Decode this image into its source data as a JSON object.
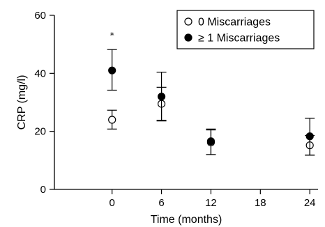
{
  "chart_data": {
    "type": "scatter",
    "xlabel": "Time (months)",
    "ylabel": "CRP (mg/l)",
    "xlim": [
      -7,
      25
    ],
    "ylim": [
      0,
      60
    ],
    "x_ticks": [
      0,
      6,
      12,
      18,
      24
    ],
    "y_ticks": [
      0,
      20,
      40,
      60
    ],
    "legend_position": "top-right",
    "series": [
      {
        "name": "0 Miscarriages",
        "marker": "open-circle",
        "color": "#000000",
        "points": [
          {
            "x": 0,
            "y": 24,
            "low": 20.8,
            "high": 27.3
          },
          {
            "x": 6,
            "y": 29.5,
            "low": 23.8,
            "high": 35.2
          },
          {
            "x": 12,
            "y": 16.2,
            "low": 12,
            "high": 20.5
          },
          {
            "x": 24,
            "y": 15.2,
            "low": 11.8,
            "high": 18.6
          }
        ]
      },
      {
        "name": "≥ 1 Miscarriages",
        "marker": "filled-circle",
        "color": "#000000",
        "points": [
          {
            "x": 0,
            "y": 41,
            "low": 34.2,
            "high": 48.2
          },
          {
            "x": 6,
            "y": 32,
            "low": 23.6,
            "high": 40.4
          },
          {
            "x": 12,
            "y": 16.6,
            "low": 12,
            "high": 20.8
          },
          {
            "x": 24,
            "y": 18.3,
            "low": 11.8,
            "high": 24.5
          }
        ]
      }
    ],
    "annotations": [
      {
        "text": "*",
        "x": 0,
        "y": 53.5
      }
    ]
  }
}
